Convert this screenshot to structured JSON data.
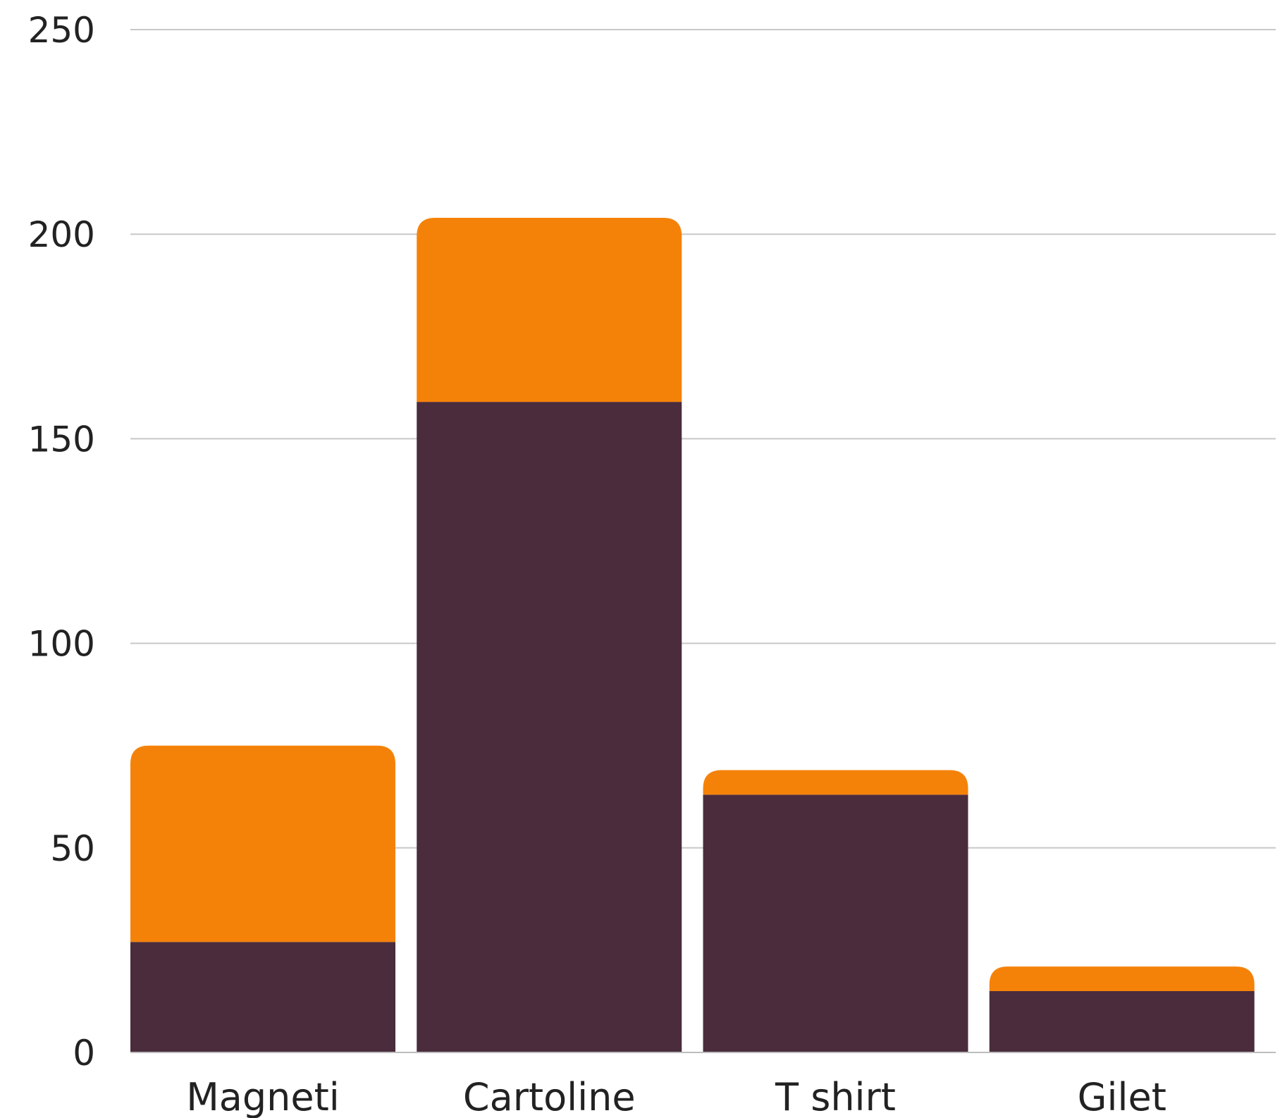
{
  "chart_data": {
    "type": "bar",
    "stacked": true,
    "categories": [
      "Magneti",
      "Cartoline",
      "T shirt",
      "Gilet"
    ],
    "series": [
      {
        "values": [
          27,
          159,
          63,
          15
        ],
        "color": "#4a2c3c"
      },
      {
        "values": [
          48,
          45,
          6,
          6
        ],
        "color": "#f58208"
      }
    ],
    "ylim": [
      0,
      250
    ],
    "yticks": [
      "0",
      "50",
      "100",
      "150",
      "200",
      "250"
    ],
    "ytick_values": [
      0,
      50,
      100,
      150,
      200,
      250
    ],
    "grid": true,
    "legend": "none"
  }
}
